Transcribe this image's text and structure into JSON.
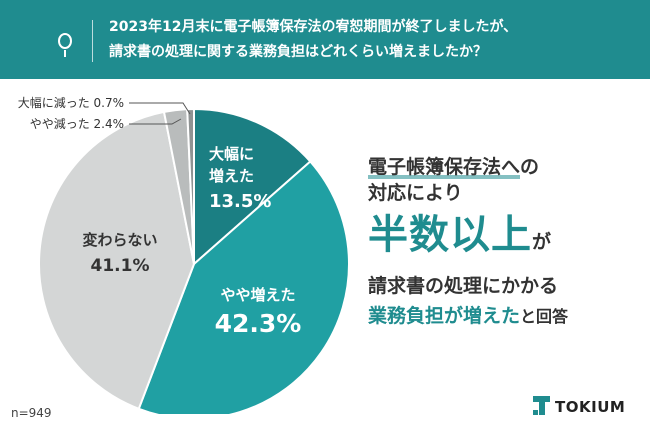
{
  "question": {
    "line1": "2023年12月末に電子帳簿保存法の宥恕期間が終了しましたが、",
    "line2": "請求書の処理に関する業務負担はどれくらい増えましたか？"
  },
  "chart_data": {
    "type": "pie",
    "start_angle_deg": 0,
    "direction": "clockwise",
    "slices": [
      {
        "label": "大幅に増えた",
        "label_lines": [
          "大幅に",
          "増えた"
        ],
        "value": 13.5,
        "value_text": "13.5%",
        "color": "#1b7f83"
      },
      {
        "label": "やや増えた",
        "label_lines": [
          "やや増えた"
        ],
        "value": 42.3,
        "value_text": "42.3%",
        "color": "#20a0a3"
      },
      {
        "label": "変わらない",
        "label_lines": [
          "変わらない"
        ],
        "value": 41.1,
        "value_text": "41.1%",
        "color": "#d4d6d6"
      },
      {
        "label": "やや減った",
        "label_lines": [
          "やや減った"
        ],
        "value": 2.4,
        "value_text": "2.4%",
        "color": "#b9bcbc"
      },
      {
        "label": "大幅に減った",
        "label_lines": [
          "大幅に減った"
        ],
        "value": 0.7,
        "value_text": "0.7%",
        "color": "#8f9393"
      }
    ],
    "callouts": {
      "decreased_slightly": "やや減った 2.4%",
      "decreased_greatly": "大幅に減った  0.7%"
    }
  },
  "message": {
    "line1": "電子帳簿保存法への",
    "line2": "対応により",
    "line3_main": "半数以上",
    "line3_tail": "が",
    "line4": "請求書の処理にかかる",
    "line5_highlight": "業務負担が増えた",
    "line5_tail": "と回答"
  },
  "sample_size": "n=949",
  "brand": {
    "name": "TOKIUM",
    "color": "#1f8c8f"
  }
}
